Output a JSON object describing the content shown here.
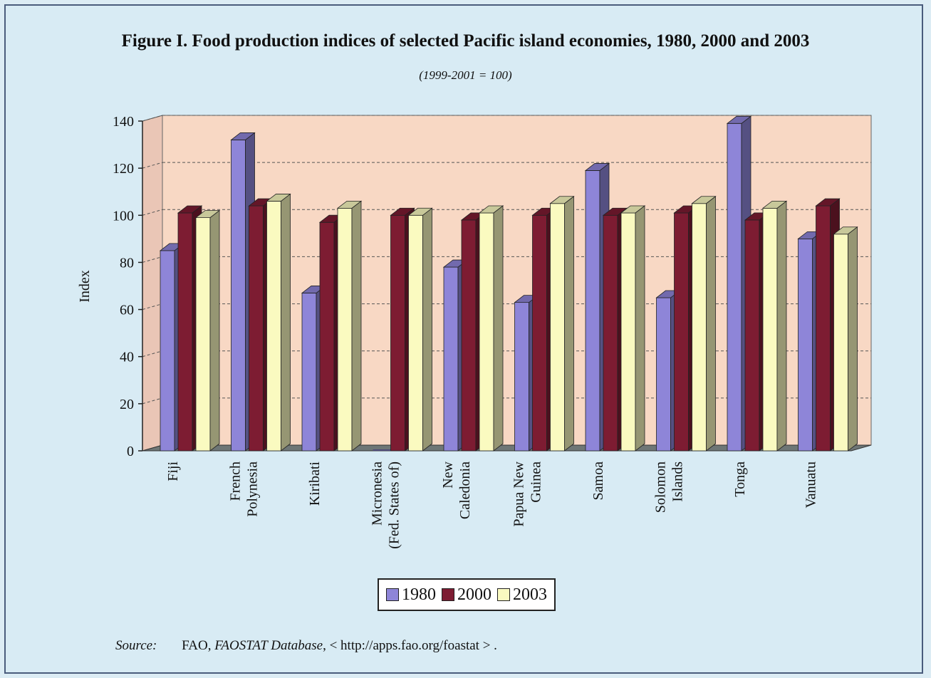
{
  "chart_data": {
    "type": "bar",
    "title": "Figure I.  Food production indices of selected Pacific island economies, 1980, 2000 and 2003",
    "subtitle": "(1999-2001 = 100)",
    "ylabel": "Index",
    "ylim": [
      0,
      140
    ],
    "yticks": [
      "0",
      "20",
      "40",
      "60",
      "80",
      "100",
      "120",
      "140"
    ],
    "grid": true,
    "legend_position": "bottom-center",
    "categories": [
      [
        "Fiji"
      ],
      [
        "French",
        "Polynesia"
      ],
      [
        "Kiribati"
      ],
      [
        "Micronesia",
        "(Fed. States of)"
      ],
      [
        "New",
        "Caledonia"
      ],
      [
        "Papua New",
        "Guinea"
      ],
      [
        "Samoa"
      ],
      [
        "Solomon",
        "Islands"
      ],
      [
        "Tonga"
      ],
      [
        "Vanuatu"
      ]
    ],
    "series": [
      {
        "name": "1980",
        "color": "#8e85d8",
        "values": [
          85,
          132,
          67,
          0,
          78,
          63,
          119,
          65,
          139,
          90
        ]
      },
      {
        "name": "2000",
        "color": "#7d1c32",
        "values": [
          101,
          104,
          97,
          100,
          98,
          100,
          100,
          101,
          98,
          104
        ]
      },
      {
        "name": "2003",
        "color": "#fafac0",
        "values": [
          99,
          106,
          103,
          100,
          101,
          105,
          101,
          105,
          103,
          92
        ]
      }
    ]
  },
  "legend": {
    "items": [
      "1980",
      "2000",
      "2003"
    ]
  },
  "source": {
    "label": "Source:",
    "org": "FAO,",
    "db": "FAOSTAT Database",
    "url": ",  < http://apps.fao.org/foastat > ."
  },
  "colors": {
    "plot_back": "#f8d8c4",
    "floor": "#6e7676",
    "frame": "#4a5c7c"
  }
}
